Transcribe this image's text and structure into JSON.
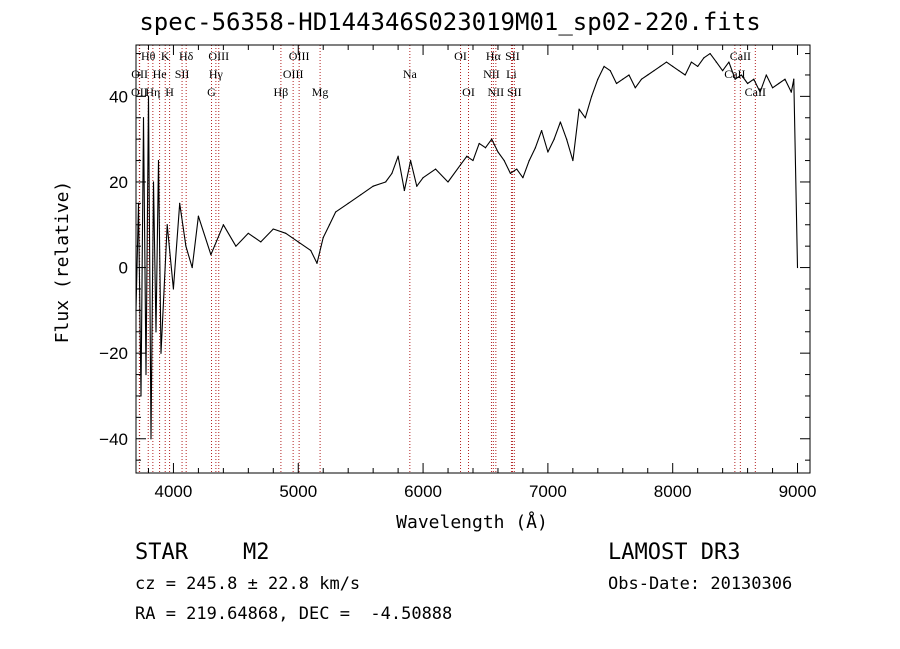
{
  "header": {
    "title": "spec-56358-HD144346S023019M01_sp02-220.fits"
  },
  "info": {
    "class_label": "STAR",
    "subclass": "M2",
    "survey": "LAMOST DR3",
    "cz": "cz = 245.8 ± 22.8 km/s",
    "obs_date": "Obs-Date: 20130306",
    "coords": "RA = 219.64868, DEC =  -4.50888"
  },
  "colors": {
    "line": "#000000",
    "marker": "#b22222"
  },
  "chart_data": {
    "type": "line",
    "title": "spec-56358-HD144346S023019M01_sp02-220.fits",
    "xlabel": "Wavelength (Å)",
    "ylabel": "Flux (relative)",
    "xlim": [
      3700,
      9100
    ],
    "ylim": [
      -48,
      52
    ],
    "xticks": [
      4000,
      5000,
      6000,
      7000,
      8000,
      9000
    ],
    "yticks": [
      -40,
      -20,
      0,
      20,
      40
    ],
    "series": [
      {
        "name": "flux",
        "x": [
          3700,
          3720,
          3740,
          3760,
          3780,
          3800,
          3820,
          3840,
          3860,
          3880,
          3900,
          3950,
          4000,
          4050,
          4100,
          4150,
          4200,
          4300,
          4400,
          4500,
          4600,
          4700,
          4800,
          4900,
          5000,
          5100,
          5150,
          5200,
          5250,
          5300,
          5400,
          5500,
          5600,
          5700,
          5750,
          5800,
          5850,
          5900,
          5950,
          6000,
          6100,
          6200,
          6300,
          6350,
          6400,
          6450,
          6500,
          6550,
          6600,
          6650,
          6700,
          6750,
          6800,
          6850,
          6900,
          6950,
          7000,
          7050,
          7100,
          7150,
          7200,
          7250,
          7300,
          7350,
          7400,
          7450,
          7500,
          7550,
          7600,
          7650,
          7700,
          7750,
          7800,
          7850,
          7900,
          7950,
          8000,
          8050,
          8100,
          8150,
          8200,
          8250,
          8300,
          8350,
          8400,
          8450,
          8500,
          8550,
          8600,
          8650,
          8700,
          8750,
          8800,
          8850,
          8900,
          8950,
          8970,
          9000
        ],
        "y": [
          -10,
          15,
          -30,
          35,
          -25,
          40,
          -40,
          20,
          -15,
          25,
          -20,
          10,
          -5,
          15,
          5,
          0,
          12,
          3,
          10,
          5,
          8,
          6,
          9,
          8,
          6,
          4,
          1,
          7,
          10,
          13,
          15,
          17,
          19,
          20,
          22,
          26,
          18,
          25,
          19,
          21,
          23,
          20,
          24,
          26,
          25,
          29,
          28,
          30,
          27,
          25,
          22,
          23,
          21,
          25,
          28,
          32,
          27,
          30,
          34,
          30,
          25,
          37,
          35,
          40,
          44,
          47,
          46,
          43,
          44,
          45,
          42,
          44,
          45,
          46,
          47,
          48,
          47,
          46,
          45,
          48,
          47,
          49,
          50,
          48,
          46,
          48,
          44,
          45,
          43,
          44,
          41,
          45,
          42,
          43,
          44,
          41,
          44,
          0
        ]
      }
    ],
    "lines": [
      {
        "label": "OII",
        "x": 3727,
        "row": 2
      },
      {
        "label": "OII",
        "x": 3729,
        "row": 1
      },
      {
        "label": "Hθ",
        "x": 3798,
        "row": 0
      },
      {
        "label": "Hη",
        "x": 3835,
        "row": 2
      },
      {
        "label": "He",
        "x": 3889,
        "row": 1
      },
      {
        "label": "K",
        "x": 3934,
        "row": 0
      },
      {
        "label": "H",
        "x": 3969,
        "row": 2
      },
      {
        "label": "SII",
        "x": 4069,
        "row": 1
      },
      {
        "label": "Hδ",
        "x": 4102,
        "row": 0
      },
      {
        "label": "G",
        "x": 4305,
        "row": 2
      },
      {
        "label": "Hγ",
        "x": 4340,
        "row": 1
      },
      {
        "label": "OIII",
        "x": 4363,
        "row": 0
      },
      {
        "label": "Hβ",
        "x": 4861,
        "row": 2
      },
      {
        "label": "OIII",
        "x": 4959,
        "row": 1
      },
      {
        "label": "OIII",
        "x": 5007,
        "row": 0
      },
      {
        "label": "Mg",
        "x": 5175,
        "row": 2
      },
      {
        "label": "Na",
        "x": 5894,
        "row": 1
      },
      {
        "label": "OI",
        "x": 6300,
        "row": 0
      },
      {
        "label": "OI",
        "x": 6364,
        "row": 2
      },
      {
        "label": "NII",
        "x": 6548,
        "row": 1
      },
      {
        "label": "Hα",
        "x": 6563,
        "row": 0
      },
      {
        "label": "NII",
        "x": 6583,
        "row": 2
      },
      {
        "label": "Li",
        "x": 6708,
        "row": 1
      },
      {
        "label": "SII",
        "x": 6716,
        "row": 0
      },
      {
        "label": "SII",
        "x": 6731,
        "row": 2
      },
      {
        "label": "CaII",
        "x": 8498,
        "row": 1
      },
      {
        "label": "CaII",
        "x": 8542,
        "row": 0
      },
      {
        "label": "CaII",
        "x": 8662,
        "row": 2
      }
    ]
  }
}
